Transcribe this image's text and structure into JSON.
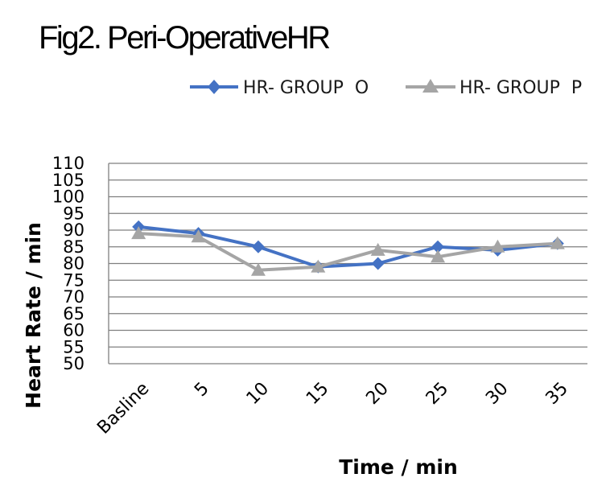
{
  "chart_data": {
    "type": "line",
    "title": "Fig2. Peri-OperativeHR",
    "xlabel": "Time / min",
    "ylabel": "Heart Rate / min",
    "categories": [
      "Basline",
      "5",
      "10",
      "15",
      "20",
      "25",
      "30",
      "35"
    ],
    "ylim": [
      50,
      110
    ],
    "yticks": [
      50,
      55,
      60,
      65,
      70,
      75,
      80,
      85,
      90,
      95,
      100,
      105,
      110
    ],
    "grid": true,
    "legend_position": "top",
    "series": [
      {
        "name": "HR- GROUP  O",
        "values": [
          91,
          89,
          85,
          79,
          80,
          85,
          84,
          86
        ],
        "color": "#4472C4",
        "marker": "diamond"
      },
      {
        "name": "HR- GROUP  P",
        "values": [
          89,
          88,
          78,
          79,
          84,
          82,
          85,
          86
        ],
        "color": "#A5A5A5",
        "marker": "triangle"
      }
    ]
  }
}
